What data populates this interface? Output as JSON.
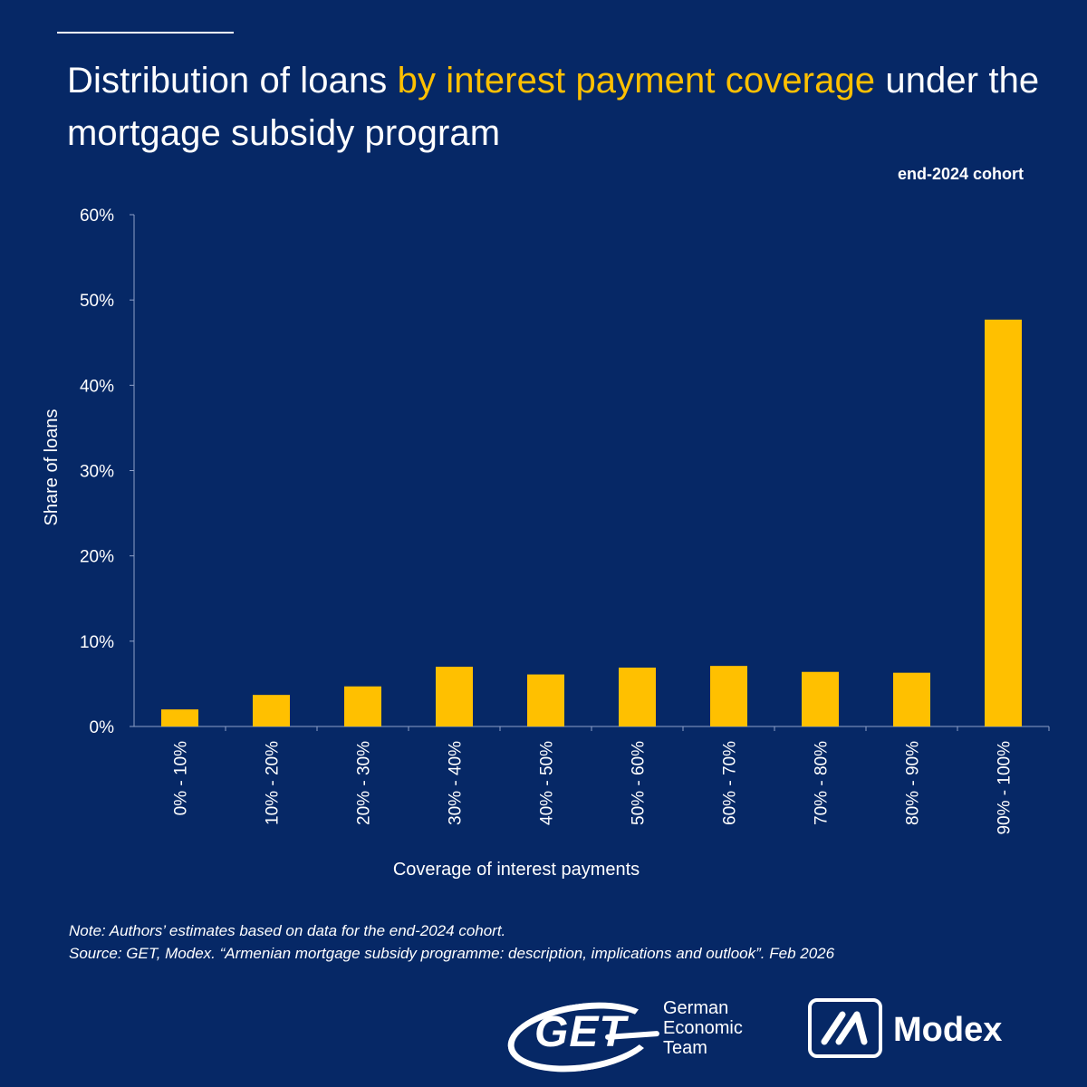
{
  "header": {
    "title_part1": "Distribution of loans ",
    "title_highlight": "by interest payment coverage",
    "title_part2": " under the mortgage subsidy program",
    "subtitle": "end-2024 cohort"
  },
  "colors": {
    "background": "#062866",
    "bar": "#FFC000",
    "text": "#ffffff",
    "highlight": "#FFC000"
  },
  "chart_data": {
    "type": "bar",
    "categories": [
      "0% - 10%",
      "10% - 20%",
      "20% - 30%",
      "30% - 40%",
      "40% - 50%",
      "50% - 60%",
      "60% - 70%",
      "70% - 80%",
      "80% - 90%",
      "90% - 100%"
    ],
    "values": [
      2.0,
      3.7,
      4.7,
      7.0,
      6.1,
      6.9,
      7.1,
      6.4,
      6.3,
      47.7
    ],
    "xlabel": "Coverage of interest payments",
    "ylabel": "Share of loans",
    "ylim": [
      0,
      60
    ],
    "yticks": [
      0,
      10,
      20,
      30,
      40,
      50,
      60
    ],
    "ytick_labels": [
      "0%",
      "10%",
      "20%",
      "30%",
      "40%",
      "50%",
      "60%"
    ],
    "grid": false,
    "legend": "none"
  },
  "footer": {
    "note": "Note: Authors’ estimates based on data for the end-2024 cohort.",
    "source": "Source: GET, Modex. “Armenian mortgage subsidy programme: description, implications and outlook”. Feb 2026"
  },
  "logos": {
    "get_wordmark": "GET",
    "get_name_line1": "German",
    "get_name_line2": "Economic",
    "get_name_line3": "Team",
    "modex_wordmark": "Modex"
  }
}
